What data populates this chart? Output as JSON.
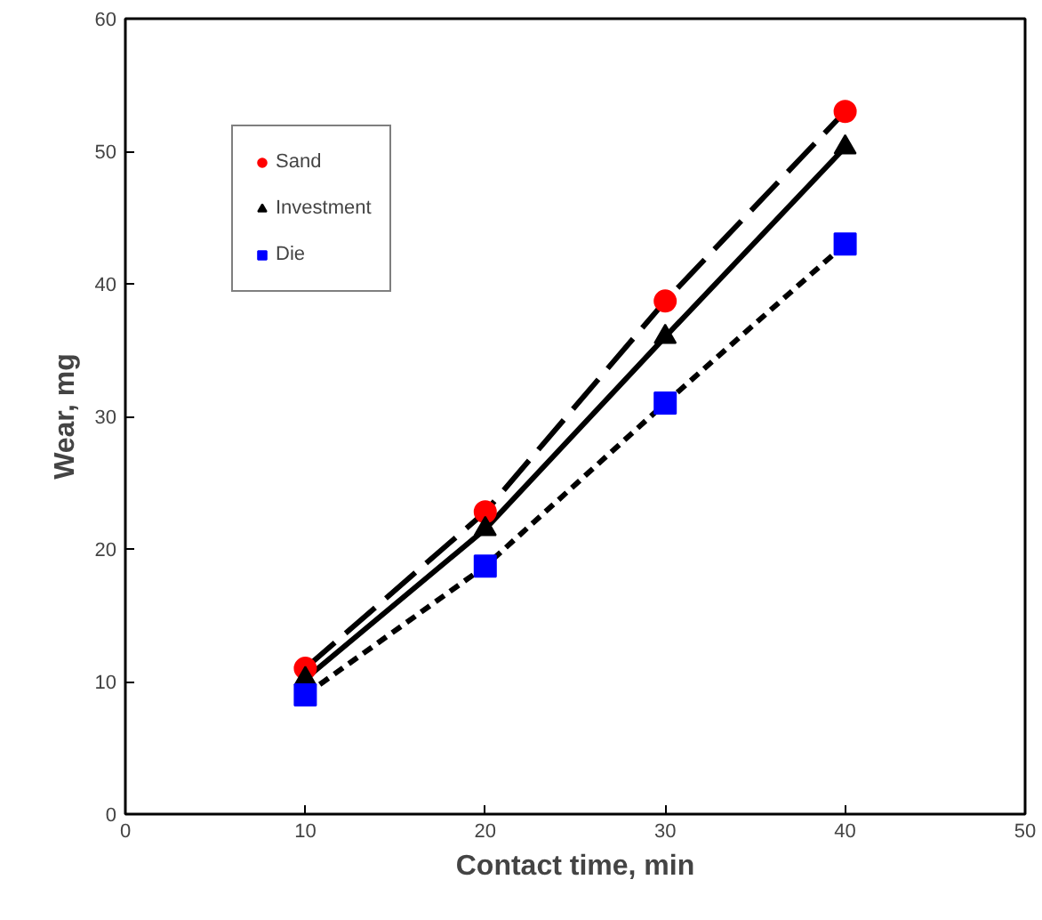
{
  "chart_data": {
    "type": "scatter",
    "xlabel": "Contact time, min",
    "ylabel": "Wear, mg",
    "x": [
      10,
      20,
      30,
      40
    ],
    "series": [
      {
        "type": "line",
        "color": "#000000",
        "line_style": "dashed",
        "values": [
          11,
          22.8,
          38.7,
          53
        ]
      },
      {
        "type": "line",
        "color": "#000000",
        "line_style": "solid",
        "values": [
          10.2,
          21.5,
          36,
          50.3
        ]
      },
      {
        "type": "line",
        "color": "#000000",
        "line_style": "dotted",
        "values": [
          9,
          18.7,
          31,
          43
        ]
      },
      {
        "name": "Sand",
        "marker": "circle",
        "color": "#ff0000",
        "values": [
          11,
          22.8,
          38.7,
          53
        ]
      },
      {
        "name": "Investment",
        "marker": "triangle",
        "color": "#000000",
        "values": [
          10.2,
          21.5,
          36,
          50.3
        ]
      },
      {
        "name": "Die",
        "marker": "square",
        "color": "#0000ff",
        "values": [
          9,
          18.7,
          31,
          43
        ]
      }
    ],
    "xlim": [
      0,
      50
    ],
    "xticks": [
      0,
      10,
      20,
      30,
      40,
      50
    ],
    "ylim": [
      0,
      60
    ],
    "yticks": [
      0,
      10,
      20,
      30,
      40,
      50,
      60
    ],
    "grid": false,
    "legend": "top left"
  }
}
